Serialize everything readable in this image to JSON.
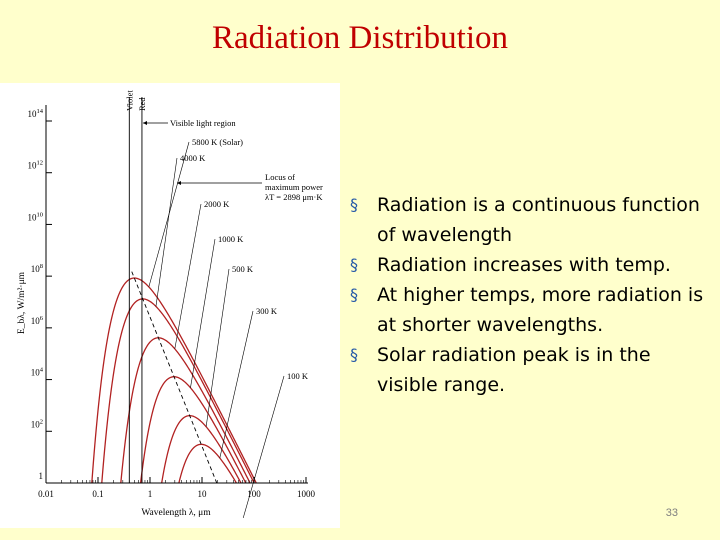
{
  "slide": {
    "title": "Radiation Distribution",
    "page_number": "33",
    "bullets": [
      "Radiation is a continuous function of wavelength",
      "Radiation increases with temp.",
      "At higher temps, more radiation is at shorter wavelengths.",
      "Solar radiation peak is in the visible range."
    ],
    "bullet_icon": "square-bullet-icon",
    "colors": {
      "title": "#c00000",
      "curves": "#b22222",
      "background": "#ffffcc",
      "bullet": "#2a5ca8"
    }
  },
  "chart_data": {
    "type": "line",
    "title": "",
    "xlabel": "Wavelength λ, μm",
    "ylabel": "E_bλ, W/m²·μm",
    "x_scale": "log",
    "y_scale": "log",
    "xlim": [
      0.01,
      1000
    ],
    "ylim": [
      1,
      100000000000000
    ],
    "x_ticks": [
      {
        "value": 0.01,
        "label": "0.01"
      },
      {
        "value": 0.1,
        "label": "0.1"
      },
      {
        "value": 1,
        "label": "1"
      },
      {
        "value": 10,
        "label": "10"
      },
      {
        "value": 100,
        "label": "100"
      },
      {
        "value": 1000,
        "label": "1000"
      }
    ],
    "y_ticks": [
      {
        "value": 1,
        "base": "1",
        "exp": ""
      },
      {
        "value": 100,
        "base": "10",
        "exp": "2"
      },
      {
        "value": 10000,
        "base": "10",
        "exp": "4"
      },
      {
        "value": 1000000,
        "base": "10",
        "exp": "6"
      },
      {
        "value": 100000000,
        "base": "10",
        "exp": "8"
      },
      {
        "value": 10000000000,
        "base": "10",
        "exp": "10"
      },
      {
        "value": 1000000000000,
        "base": "10",
        "exp": "12"
      },
      {
        "value": 100000000000000,
        "base": "10",
        "exp": "14"
      }
    ],
    "series": [
      {
        "name": "5800 K (Solar)",
        "temperature_K": 5800
      },
      {
        "name": "4000 K",
        "temperature_K": 4000
      },
      {
        "name": "2000 K",
        "temperature_K": 2000
      },
      {
        "name": "1000 K",
        "temperature_K": 1000
      },
      {
        "name": "500 K",
        "temperature_K": 500
      },
      {
        "name": "300 K",
        "temperature_K": 300
      },
      {
        "name": "100 K",
        "temperature_K": 100
      }
    ],
    "locus": {
      "label": [
        "Locus of",
        "maximum power",
        "λT = 2898 μm·K"
      ],
      "lambdaT": 2898
    },
    "visible_region": {
      "label": "Visible light region",
      "violet_label": "Violet",
      "red_label": "Red",
      "violet_um": 0.4,
      "red_um": 0.7
    }
  }
}
